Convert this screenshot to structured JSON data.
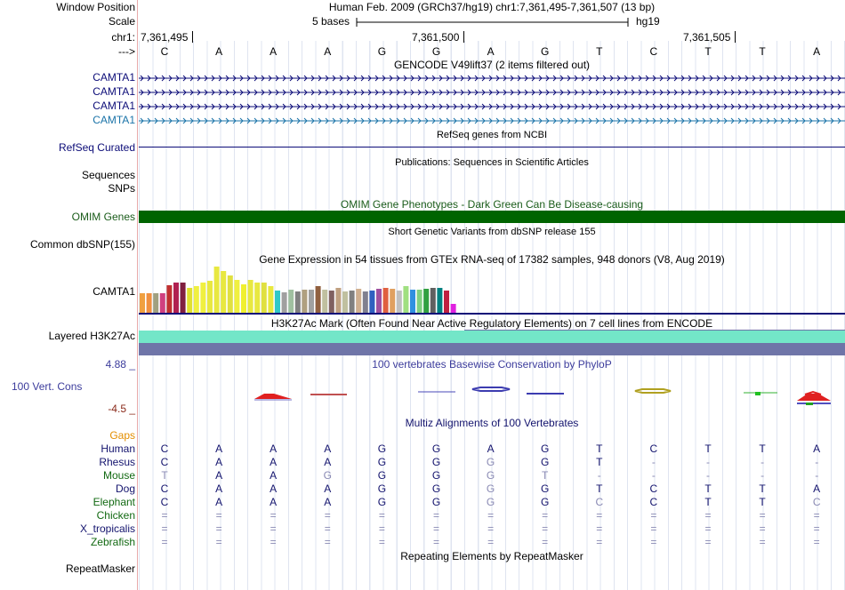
{
  "header": {
    "window_position_label": "Window Position",
    "assembly_text": "Human Feb. 2009 (GRCh37/hg19)   chr1:7,361,495-7,361,507 (13 bp)",
    "scale_label": "Scale",
    "scale_text": "5 bases",
    "scale_db": "hg19",
    "chrom_label": "chr1:",
    "strand_label": "--->",
    "positions": [
      "7,361,495",
      "7,361,500",
      "7,361,505"
    ]
  },
  "sequence": [
    "C",
    "A",
    "A",
    "A",
    "G",
    "G",
    "A",
    "G",
    "T",
    "C",
    "T",
    "T",
    "A"
  ],
  "gencode": {
    "title": "GENCODE V49lift37 (2 items filtered out)",
    "items": [
      "CAMTA1",
      "CAMTA1",
      "CAMTA1",
      "CAMTA1"
    ]
  },
  "refseq": {
    "label": "RefSeq Curated",
    "title": "RefSeq genes from NCBI"
  },
  "publications": {
    "label": "Sequences",
    "title": "Publications: Sequences in Scientific Articles"
  },
  "snps_label": "SNPs",
  "omim": {
    "title": "OMIM Gene Phenotypes - Dark Green Can Be Disease-causing",
    "label": "OMIM Genes"
  },
  "dbsnp": {
    "label": "Common dbSNP(155)",
    "title": "Short Genetic Variants from dbSNP release 155"
  },
  "gtex": {
    "title": "Gene Expression in 54 tissues from GTEx RNA-seq of 17382 samples, 948 donors (V8, Aug 2019)",
    "label": "CAMTA1"
  },
  "h3k27ac": {
    "title": "H3K27Ac Mark (Often Found Near Active Regulatory Elements) on 7 cell lines from ENCODE",
    "label": "Layered H3K27Ac"
  },
  "phylop": {
    "title": "100 vertebrates Basewise Conservation by PhyloP",
    "max_label": "4.88 _",
    "label": "100 Vert. Cons",
    "min_label": "-4.5 _"
  },
  "multiz": {
    "title": "Multiz Alignments of 100 Vertebrates",
    "gaps_label": "Gaps",
    "species": [
      {
        "name": "Human",
        "bases": [
          "C",
          "A",
          "A",
          "A",
          "G",
          "G",
          "A",
          "G",
          "T",
          "C",
          "T",
          "T",
          "A"
        ]
      },
      {
        "name": "Rhesus",
        "bases": [
          "C",
          "A",
          "A",
          "A",
          "G",
          "G",
          "G",
          "G",
          "T",
          "-",
          "-",
          "-",
          "-"
        ]
      },
      {
        "name": "Mouse",
        "bases": [
          "T",
          "A",
          "A",
          "G",
          "G",
          "G",
          "G",
          "T",
          "-",
          "-",
          "-",
          "-",
          "-"
        ]
      },
      {
        "name": "Dog",
        "bases": [
          "C",
          "A",
          "A",
          "A",
          "G",
          "G",
          "G",
          "G",
          "T",
          "C",
          "T",
          "T",
          "A"
        ]
      },
      {
        "name": "Elephant",
        "bases": [
          "C",
          "A",
          "A",
          "A",
          "G",
          "G",
          "G",
          "G",
          "C",
          "C",
          "T",
          "T",
          "C"
        ]
      },
      {
        "name": "Chicken",
        "bases": [
          "=",
          "=",
          "=",
          "=",
          "=",
          "=",
          "=",
          "=",
          "=",
          "=",
          "=",
          "=",
          "="
        ]
      },
      {
        "name": "X_tropicalis",
        "bases": [
          "=",
          "=",
          "=",
          "=",
          "=",
          "=",
          "=",
          "=",
          "=",
          "=",
          "=",
          "=",
          "="
        ]
      },
      {
        "name": "Zebrafish",
        "bases": [
          "=",
          "=",
          "=",
          "=",
          "=",
          "=",
          "=",
          "=",
          "=",
          "=",
          "=",
          "=",
          "="
        ]
      }
    ]
  },
  "repeatmasker": {
    "label": "RepeatMasker",
    "title": "Repeating Elements by RepeatMasker"
  },
  "colors": {
    "gene_blue": "#0c0c78",
    "gencode_teal": "#1a73a8",
    "omim_green": "#006400",
    "omim_label": "#1a5c1a",
    "h3k27ac_teal": "#73e6c8",
    "h3k27ac_slate": "#6f75a8",
    "phylop_blue": "#3c3c9c",
    "gaps_orange": "#e38e00",
    "species_green": "#126912",
    "species_blue": "#14146e",
    "min_brown": "#8a2a1a"
  }
}
